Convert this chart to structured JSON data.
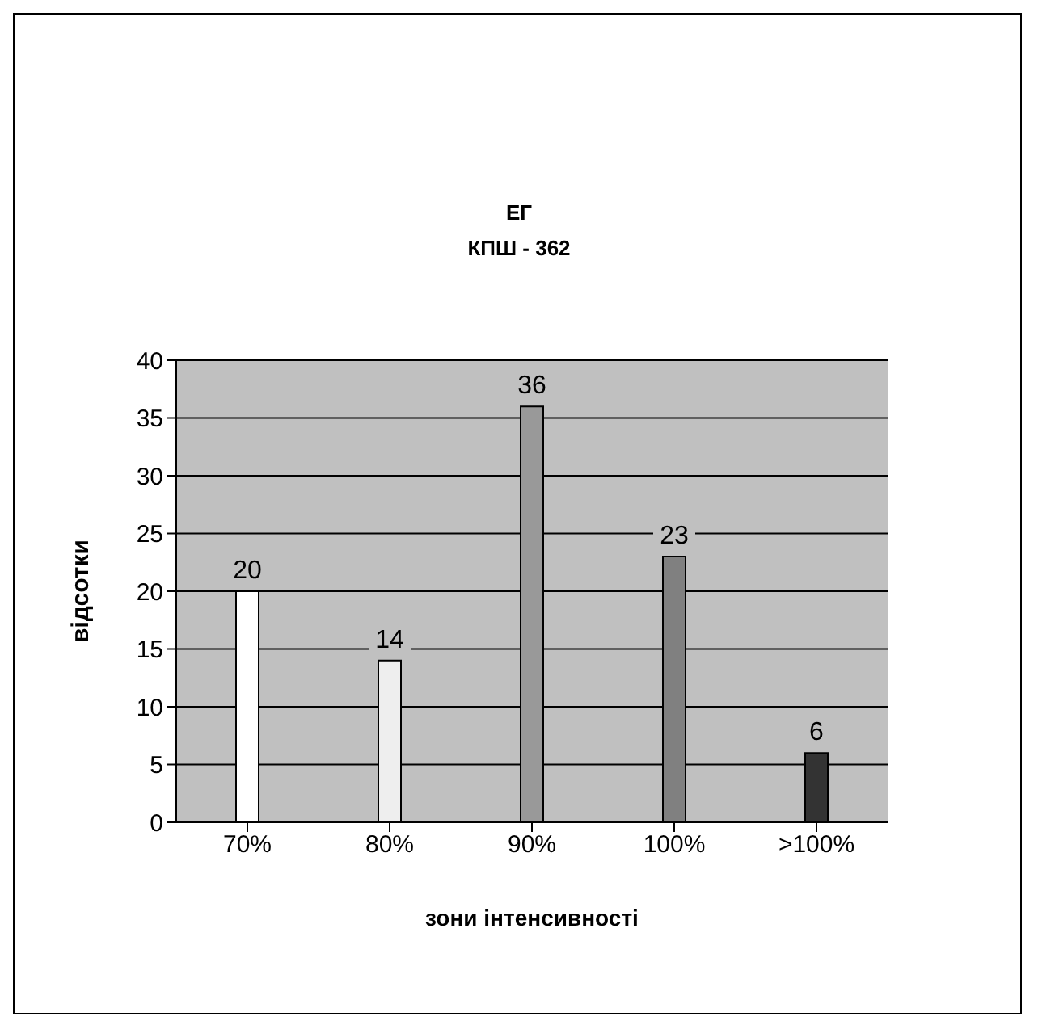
{
  "chart_data": {
    "type": "bar",
    "title": "ЕГ\nКПШ - 362",
    "xlabel": "зони інтенсивності",
    "ylabel": "відсотки",
    "categories": [
      "70%",
      "80%",
      "90%",
      "100%",
      ">100%"
    ],
    "values": [
      20,
      14,
      36,
      23,
      6
    ],
    "colors": [
      "#ffffff",
      "#eeeeee",
      "#999999",
      "#808080",
      "#333333"
    ],
    "ylim": [
      0,
      40
    ],
    "yticks": [
      0,
      5,
      10,
      15,
      20,
      25,
      30,
      35,
      40
    ],
    "grid": "y",
    "data_labels": true
  }
}
